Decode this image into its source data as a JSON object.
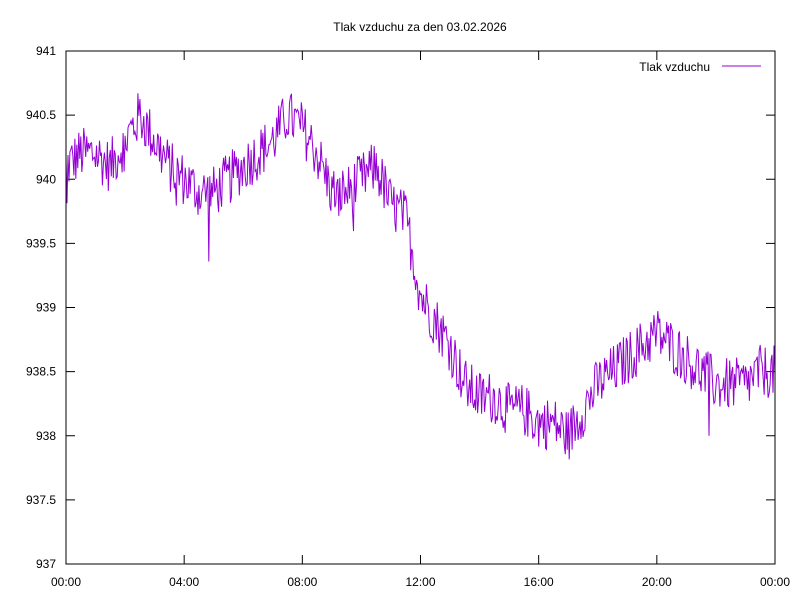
{
  "chart_data": {
    "type": "line",
    "title": "Tlak vzduchu za den 03.02.2026",
    "xlabel": "",
    "ylabel": "",
    "xlim": [
      "00:00",
      "24:00"
    ],
    "ylim": [
      937,
      941
    ],
    "x_ticks": [
      "00:00",
      "04:00",
      "08:00",
      "12:00",
      "16:00",
      "20:00",
      "00:00"
    ],
    "y_ticks": [
      "937",
      "937.5",
      "938",
      "938.5",
      "939",
      "939.5",
      "940",
      "940.5",
      "941"
    ],
    "grid": false,
    "legend_position": "top-right",
    "series": [
      {
        "name": "Tlak vzduchu",
        "color": "#9400d3",
        "x_hours": [
          0.0,
          0.5,
          1.0,
          1.5,
          2.0,
          2.5,
          3.0,
          3.5,
          4.0,
          4.5,
          5.0,
          5.5,
          6.0,
          6.5,
          7.0,
          7.5,
          8.0,
          8.5,
          9.0,
          9.5,
          10.0,
          10.5,
          11.0,
          11.5,
          12.0,
          12.5,
          13.0,
          13.5,
          14.0,
          14.5,
          15.0,
          15.5,
          16.0,
          16.5,
          17.0,
          17.5,
          18.0,
          18.5,
          19.0,
          19.5,
          20.0,
          20.5,
          21.0,
          21.5,
          22.0,
          22.5,
          23.0,
          23.5,
          24.0
        ],
        "values": [
          940.1,
          940.2,
          940.2,
          940.1,
          940.3,
          940.5,
          940.3,
          940.1,
          940.0,
          939.9,
          939.9,
          940.0,
          940.1,
          940.2,
          940.3,
          940.5,
          940.4,
          940.2,
          939.9,
          939.9,
          940.0,
          940.1,
          939.8,
          939.7,
          939.1,
          938.9,
          938.7,
          938.4,
          938.3,
          938.3,
          938.2,
          938.2,
          938.1,
          938.1,
          938.0,
          938.2,
          938.4,
          938.5,
          938.6,
          938.7,
          938.8,
          938.7,
          938.6,
          938.5,
          938.4,
          938.4,
          938.4,
          938.5,
          938.5
        ]
      }
    ]
  }
}
